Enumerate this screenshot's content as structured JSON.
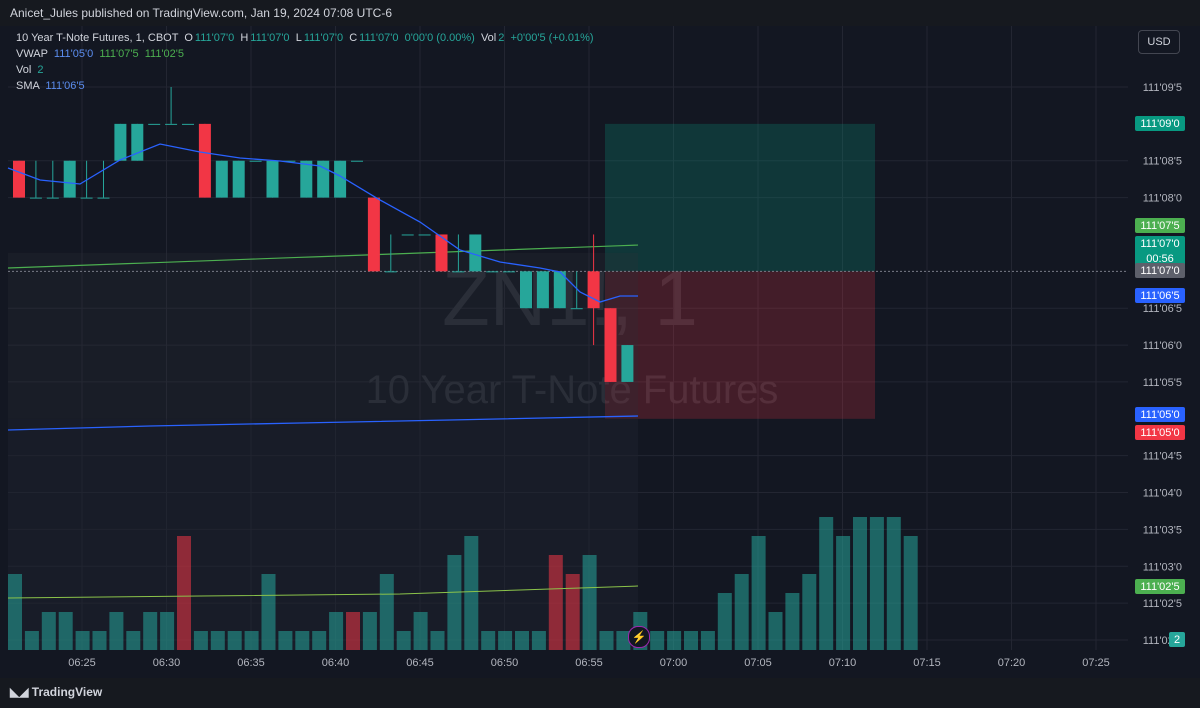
{
  "header": {
    "publisher_line": "Anicet_Jules published on TradingView.com, Jan 19, 2024 07:08 UTC-6"
  },
  "legend": {
    "title": "10 Year T-Note Futures, 1, CBOT",
    "open_label": "O",
    "open": "111'07'0",
    "high_label": "H",
    "high": "111'07'0",
    "low_label": "L",
    "low": "111'07'0",
    "close_label": "C",
    "close": "111'07'0",
    "change": "0'00'0 (0.00%)",
    "vol_label": "Vol",
    "vol_value": "2",
    "vol_change": "+0'00'5 (+0.01%)",
    "vwap_label": "VWAP",
    "vwap_1": "111'05'0",
    "vwap_2": "111'07'5",
    "vwap_3": "111'02'5",
    "vol2_label": "Vol",
    "vol2_value": "2",
    "sma_label": "SMA",
    "sma_value": "111'06'5"
  },
  "currency_button": "USD",
  "watermark": {
    "symbol": "ZN1!, 1",
    "name": "10 Year T-Note Futures"
  },
  "colors": {
    "up": "#26a69a",
    "down": "#f23645",
    "vwap": "#2962ff",
    "upper_band": "#4caf50",
    "sma": "#2962ff",
    "bg": "#131722",
    "grid": "#232632"
  },
  "bottom_bar": {
    "brand": "TradingView"
  },
  "chart_data": {
    "type": "candlestick",
    "price_unit": "32nds",
    "y_axis": {
      "min_32": 3553,
      "max_32": 3555.25,
      "ticks": [
        {
          "label": "111'09'5",
          "v": 3561.5
        },
        {
          "label": "111'08'5",
          "v": 3560.5
        },
        {
          "label": "111'08'0",
          "v": 3560.0
        },
        {
          "label": "111'06'5",
          "v": 3558.5
        },
        {
          "label": "111'06'0",
          "v": 3558.0
        },
        {
          "label": "111'05'5",
          "v": 3557.5
        },
        {
          "label": "111'04'5",
          "v": 3556.5
        },
        {
          "label": "111'04'0",
          "v": 3556.0
        },
        {
          "label": "111'03'5",
          "v": 3555.5
        },
        {
          "label": "111'03'0",
          "v": 3555.0
        },
        {
          "label": "111'02'5",
          "v": 3554.5
        },
        {
          "label": "111'02'0",
          "v": 3554.0
        }
      ]
    },
    "x_axis": {
      "labels": [
        "06:25",
        "06:30",
        "06:35",
        "06:40",
        "06:45",
        "06:50",
        "06:55",
        "07:00",
        "07:05",
        "07:10",
        "07:15",
        "07:20",
        "07:25"
      ],
      "start_minute": "06:21"
    },
    "candles": [
      {
        "t": "06:21",
        "o": 111.253,
        "h": 111.253,
        "l": 111.253,
        "c": 111.253
      },
      {
        "t": "06:22",
        "o": 111.253,
        "h": 111.253,
        "l": 111.253,
        "c": 111.253
      },
      {
        "t": "06:23",
        "o": 111.253,
        "h": 111.2545,
        "l": 111.2515,
        "c": 111.2515
      },
      {
        "t": "06:24",
        "o": 111.2515,
        "h": 111.2545,
        "l": 111.2515,
        "c": 111.2545
      },
      {
        "t": "06:25",
        "o": 111.2545,
        "h": 111.2545,
        "l": 111.2515,
        "c": 111.2515
      },
      {
        "t": "06:26",
        "o": 111.2515,
        "h": 111.2545,
        "l": 111.2515,
        "c": 111.2545
      }
    ],
    "bars_32": [
      {
        "t": "06:21",
        "o": 3560.5,
        "h": 3560.5,
        "l": 3560.0,
        "c": 3560.0
      },
      {
        "t": "06:22",
        "o": 3560.0,
        "h": 3560.5,
        "l": 3560.0,
        "c": 3560.0
      },
      {
        "t": "06:23",
        "o": 3560.0,
        "h": 3560.5,
        "l": 3560.0,
        "c": 3560.0
      },
      {
        "t": "06:24",
        "o": 3560.0,
        "h": 3560.5,
        "l": 3560.0,
        "c": 3560.5
      },
      {
        "t": "06:25",
        "o": 3560.0,
        "h": 3560.5,
        "l": 3560.0,
        "c": 3560.0
      },
      {
        "t": "06:26",
        "o": 3560.0,
        "h": 3560.5,
        "l": 3560.0,
        "c": 3560.0
      },
      {
        "t": "06:27",
        "o": 3560.5,
        "h": 3561.0,
        "l": 3560.5,
        "c": 3561.0
      },
      {
        "t": "06:28",
        "o": 3560.5,
        "h": 3561.0,
        "l": 3560.5,
        "c": 3561.0
      },
      {
        "t": "06:29",
        "o": 3561.0,
        "h": 3561.0,
        "l": 3561.0,
        "c": 3561.0
      },
      {
        "t": "06:30",
        "o": 3561.0,
        "h": 3561.5,
        "l": 3561.0,
        "c": 3561.0
      },
      {
        "t": "06:31",
        "o": 3561.0,
        "h": 3561.0,
        "l": 3561.0,
        "c": 3561.0
      },
      {
        "t": "06:32",
        "o": 3561.0,
        "h": 3561.0,
        "l": 3560.0,
        "c": 3560.0
      },
      {
        "t": "06:33",
        "o": 3560.0,
        "h": 3560.5,
        "l": 3560.0,
        "c": 3560.5
      },
      {
        "t": "06:34",
        "o": 3560.0,
        "h": 3560.5,
        "l": 3560.0,
        "c": 3560.5
      },
      {
        "t": "06:35",
        "o": 3560.5,
        "h": 3560.5,
        "l": 3560.5,
        "c": 3560.5
      },
      {
        "t": "06:36",
        "o": 3560.0,
        "h": 3560.5,
        "l": 3560.0,
        "c": 3560.5
      },
      {
        "t": "06:37",
        "o": 3560.5,
        "h": 3560.5,
        "l": 3560.5,
        "c": 3560.5
      },
      {
        "t": "06:38",
        "o": 3560.0,
        "h": 3560.5,
        "l": 3560.0,
        "c": 3560.5
      },
      {
        "t": "06:39",
        "o": 3560.0,
        "h": 3560.5,
        "l": 3560.0,
        "c": 3560.5
      },
      {
        "t": "06:40",
        "o": 3560.0,
        "h": 3560.5,
        "l": 3560.0,
        "c": 3560.5
      },
      {
        "t": "06:41",
        "o": 3560.5,
        "h": 3560.5,
        "l": 3560.5,
        "c": 3560.5
      },
      {
        "t": "06:42",
        "o": 3560.0,
        "h": 3560.0,
        "l": 3559.0,
        "c": 3559.0
      },
      {
        "t": "06:43",
        "o": 3559.0,
        "h": 3559.5,
        "l": 3559.0,
        "c": 3559.0
      },
      {
        "t": "06:44",
        "o": 3559.5,
        "h": 3559.5,
        "l": 3559.5,
        "c": 3559.5
      },
      {
        "t": "06:45",
        "o": 3559.5,
        "h": 3559.5,
        "l": 3559.5,
        "c": 3559.5
      },
      {
        "t": "06:46",
        "o": 3559.5,
        "h": 3559.5,
        "l": 3559.0,
        "c": 3559.0
      },
      {
        "t": "06:47",
        "o": 3559.0,
        "h": 3559.5,
        "l": 3559.0,
        "c": 3559.0
      },
      {
        "t": "06:48",
        "o": 3559.0,
        "h": 3559.5,
        "l": 3559.0,
        "c": 3559.5
      },
      {
        "t": "06:49",
        "o": 3559.0,
        "h": 3559.0,
        "l": 3559.0,
        "c": 3559.0
      },
      {
        "t": "06:50",
        "o": 3559.0,
        "h": 3559.0,
        "l": 3559.0,
        "c": 3559.0
      },
      {
        "t": "06:51",
        "o": 3558.5,
        "h": 3559.0,
        "l": 3558.5,
        "c": 3559.0
      },
      {
        "t": "06:52",
        "o": 3558.5,
        "h": 3559.0,
        "l": 3558.5,
        "c": 3559.0
      },
      {
        "t": "06:53",
        "o": 3558.5,
        "h": 3559.0,
        "l": 3558.5,
        "c": 3559.0
      },
      {
        "t": "06:54",
        "o": 3558.5,
        "h": 3559.0,
        "l": 3558.5,
        "c": 3558.5
      },
      {
        "t": "06:55",
        "o": 3559.0,
        "h": 3559.5,
        "l": 3558.0,
        "c": 3558.5
      },
      {
        "t": "06:56",
        "o": 3558.5,
        "h": 3558.5,
        "l": 3557.5,
        "c": 3557.5
      },
      {
        "t": "06:57",
        "o": 3557.5,
        "h": 3558.0,
        "l": 3557.5,
        "c": 3558.0
      }
    ],
    "volume": [
      2,
      0.5,
      1,
      1,
      0.5,
      0.5,
      1,
      0.5,
      1,
      1,
      3,
      0.5,
      0.5,
      0.5,
      0.5,
      2,
      0.5,
      0.5,
      0.5,
      1,
      1,
      1,
      2,
      0.5,
      1,
      0.5,
      2.5,
      3,
      0.5,
      0.5,
      0.5,
      0.5,
      2.5,
      2,
      2.5,
      0.5,
      0.5,
      1,
      0.5,
      0.5,
      0.5,
      0.5,
      1.5,
      2,
      3,
      1,
      1.5,
      2,
      3.5,
      3,
      3.5,
      3.5,
      3.5,
      3
    ],
    "position_tool": {
      "entry": "111'07'0",
      "target": "111'09'0",
      "stop": "111'05'0"
    },
    "price_labels": [
      {
        "label": "111'09'0",
        "color": "#089981"
      },
      {
        "label": "111'07'5",
        "color": "#4caf50"
      },
      {
        "label": "111'07'0",
        "color": "#089981",
        "sub": "00:56"
      },
      {
        "label": "111'07'0",
        "color": "#5d606b"
      },
      {
        "label": "111'06'5",
        "color": "#2962ff"
      },
      {
        "label": "111'05'0",
        "color": "#2962ff"
      },
      {
        "label": "111'05'0",
        "color": "#f23645"
      },
      {
        "label": "111'02'5",
        "color": "#4caf50"
      },
      {
        "label": "2",
        "color": "#26a69a"
      }
    ]
  }
}
